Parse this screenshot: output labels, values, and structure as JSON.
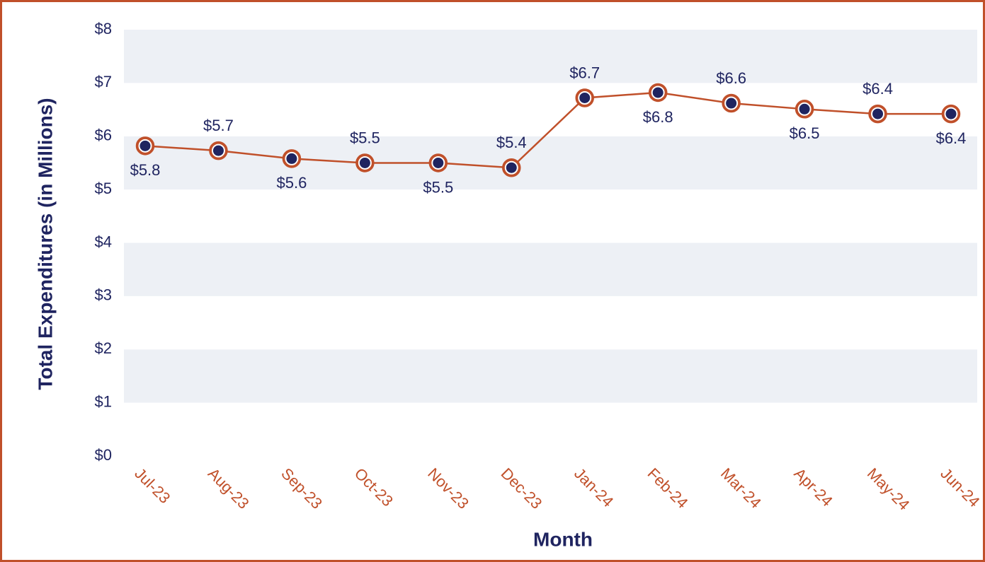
{
  "chart_data": {
    "type": "line",
    "x_label": "Month",
    "y_label": "Total Expenditures (in Millions)",
    "categories": [
      "Jul-23",
      "Aug-23",
      "Sep-23",
      "Oct-23",
      "Nov-23",
      "Dec-23",
      "Jan-24",
      "Feb-24",
      "Mar-24",
      "Apr-24",
      "May-24",
      "Jun-24"
    ],
    "values": [
      5.82,
      5.73,
      5.58,
      5.5,
      5.5,
      5.41,
      6.72,
      6.82,
      6.62,
      6.51,
      6.42,
      6.42
    ],
    "value_labels": [
      "$5.8",
      "$5.7",
      "$5.6",
      "$5.5",
      "$5.5",
      "$5.4",
      "$6.7",
      "$6.8",
      "$6.6",
      "$6.5",
      "$6.4",
      "$6.4"
    ],
    "color": "#c0502a",
    "marker_color": "#1f2460",
    "ylim": [
      0,
      8
    ],
    "yticks": [
      {
        "value": 0,
        "label": "$0"
      },
      {
        "value": 1,
        "label": "$1"
      },
      {
        "value": 2,
        "label": "$2"
      },
      {
        "value": 3,
        "label": "$3"
      },
      {
        "value": 4,
        "label": "$4"
      },
      {
        "value": 5,
        "label": "$5"
      },
      {
        "value": 6,
        "label": "$6"
      },
      {
        "value": 7,
        "label": "$7"
      },
      {
        "value": 8,
        "label": "$8"
      }
    ],
    "grid": true
  }
}
